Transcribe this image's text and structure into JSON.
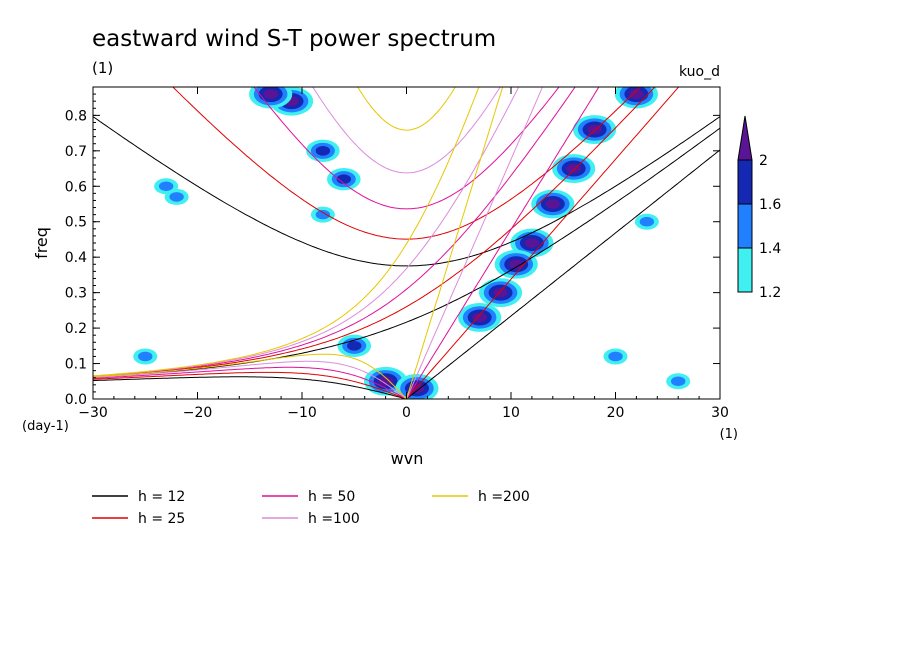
{
  "chart_data": {
    "type": "heatmap",
    "title": "eastward wind S-T power spectrum",
    "subtitle": "(1)",
    "label_right": "kuo_d",
    "xlabel": "wvn",
    "ylabel": "freq",
    "x_unit": "(1)",
    "y_unit": "(day-1)",
    "xlim": [
      -30,
      30
    ],
    "ylim": [
      0,
      0.88
    ],
    "xticks": [
      -30,
      -20,
      -10,
      0,
      10,
      20,
      30
    ],
    "xticklabels": [
      "−30",
      "−20",
      "−10",
      "0",
      "10",
      "20",
      "30"
    ],
    "yticks": [
      0,
      0.1,
      0.2,
      0.3,
      0.4,
      0.5,
      0.6,
      0.7,
      0.8
    ],
    "yticklabels": [
      "0.0",
      "0.1",
      "0.2",
      "0.3",
      "0.4",
      "0.5",
      "0.6",
      "0.7",
      "0.8"
    ],
    "colorbar": {
      "ticks": [
        "1.2",
        "1.4",
        "1.6",
        "2"
      ],
      "colors": [
        "#40f0f0",
        "#2080ff",
        "#1428b4",
        "#5a1496"
      ]
    },
    "dispersion_curves": [
      {
        "label": "h = 12",
        "h": 12,
        "color": "#000000"
      },
      {
        "label": "h = 25",
        "h": 25,
        "color": "#e00000"
      },
      {
        "label": "h = 50",
        "h": 50,
        "color": "#e0109c"
      },
      {
        "label": "h =100",
        "h": 100,
        "color": "#dc8cdc"
      },
      {
        "label": "h =200",
        "h": 200,
        "color": "#e6c800"
      }
    ],
    "spectral_blobs": [
      {
        "k": 12,
        "f": 0.44,
        "level": 3
      },
      {
        "k": 10.5,
        "f": 0.38,
        "level": 3
      },
      {
        "k": 9,
        "f": 0.3,
        "level": 3
      },
      {
        "k": 14,
        "f": 0.55,
        "level": 3
      },
      {
        "k": 16,
        "f": 0.65,
        "level": 3
      },
      {
        "k": 18,
        "f": 0.76,
        "level": 3
      },
      {
        "k": 22,
        "f": 0.86,
        "level": 3
      },
      {
        "k": 7,
        "f": 0.23,
        "level": 3
      },
      {
        "k": -11,
        "f": 0.84,
        "level": 3
      },
      {
        "k": -13,
        "f": 0.86,
        "level": 3
      },
      {
        "k": -8,
        "f": 0.7,
        "level": 2
      },
      {
        "k": -6,
        "f": 0.62,
        "level": 2
      },
      {
        "k": -5,
        "f": 0.15,
        "level": 2
      },
      {
        "k": -2,
        "f": 0.05,
        "level": 3
      },
      {
        "k": 1,
        "f": 0.03,
        "level": 3
      },
      {
        "k": -23,
        "f": 0.6,
        "level": 1
      },
      {
        "k": -22,
        "f": 0.57,
        "level": 1
      },
      {
        "k": -8,
        "f": 0.52,
        "level": 1
      },
      {
        "k": -25,
        "f": 0.12,
        "level": 1
      },
      {
        "k": 23,
        "f": 0.5,
        "level": 1
      },
      {
        "k": 26,
        "f": 0.05,
        "level": 1
      },
      {
        "k": 20,
        "f": 0.12,
        "level": 1
      }
    ]
  }
}
